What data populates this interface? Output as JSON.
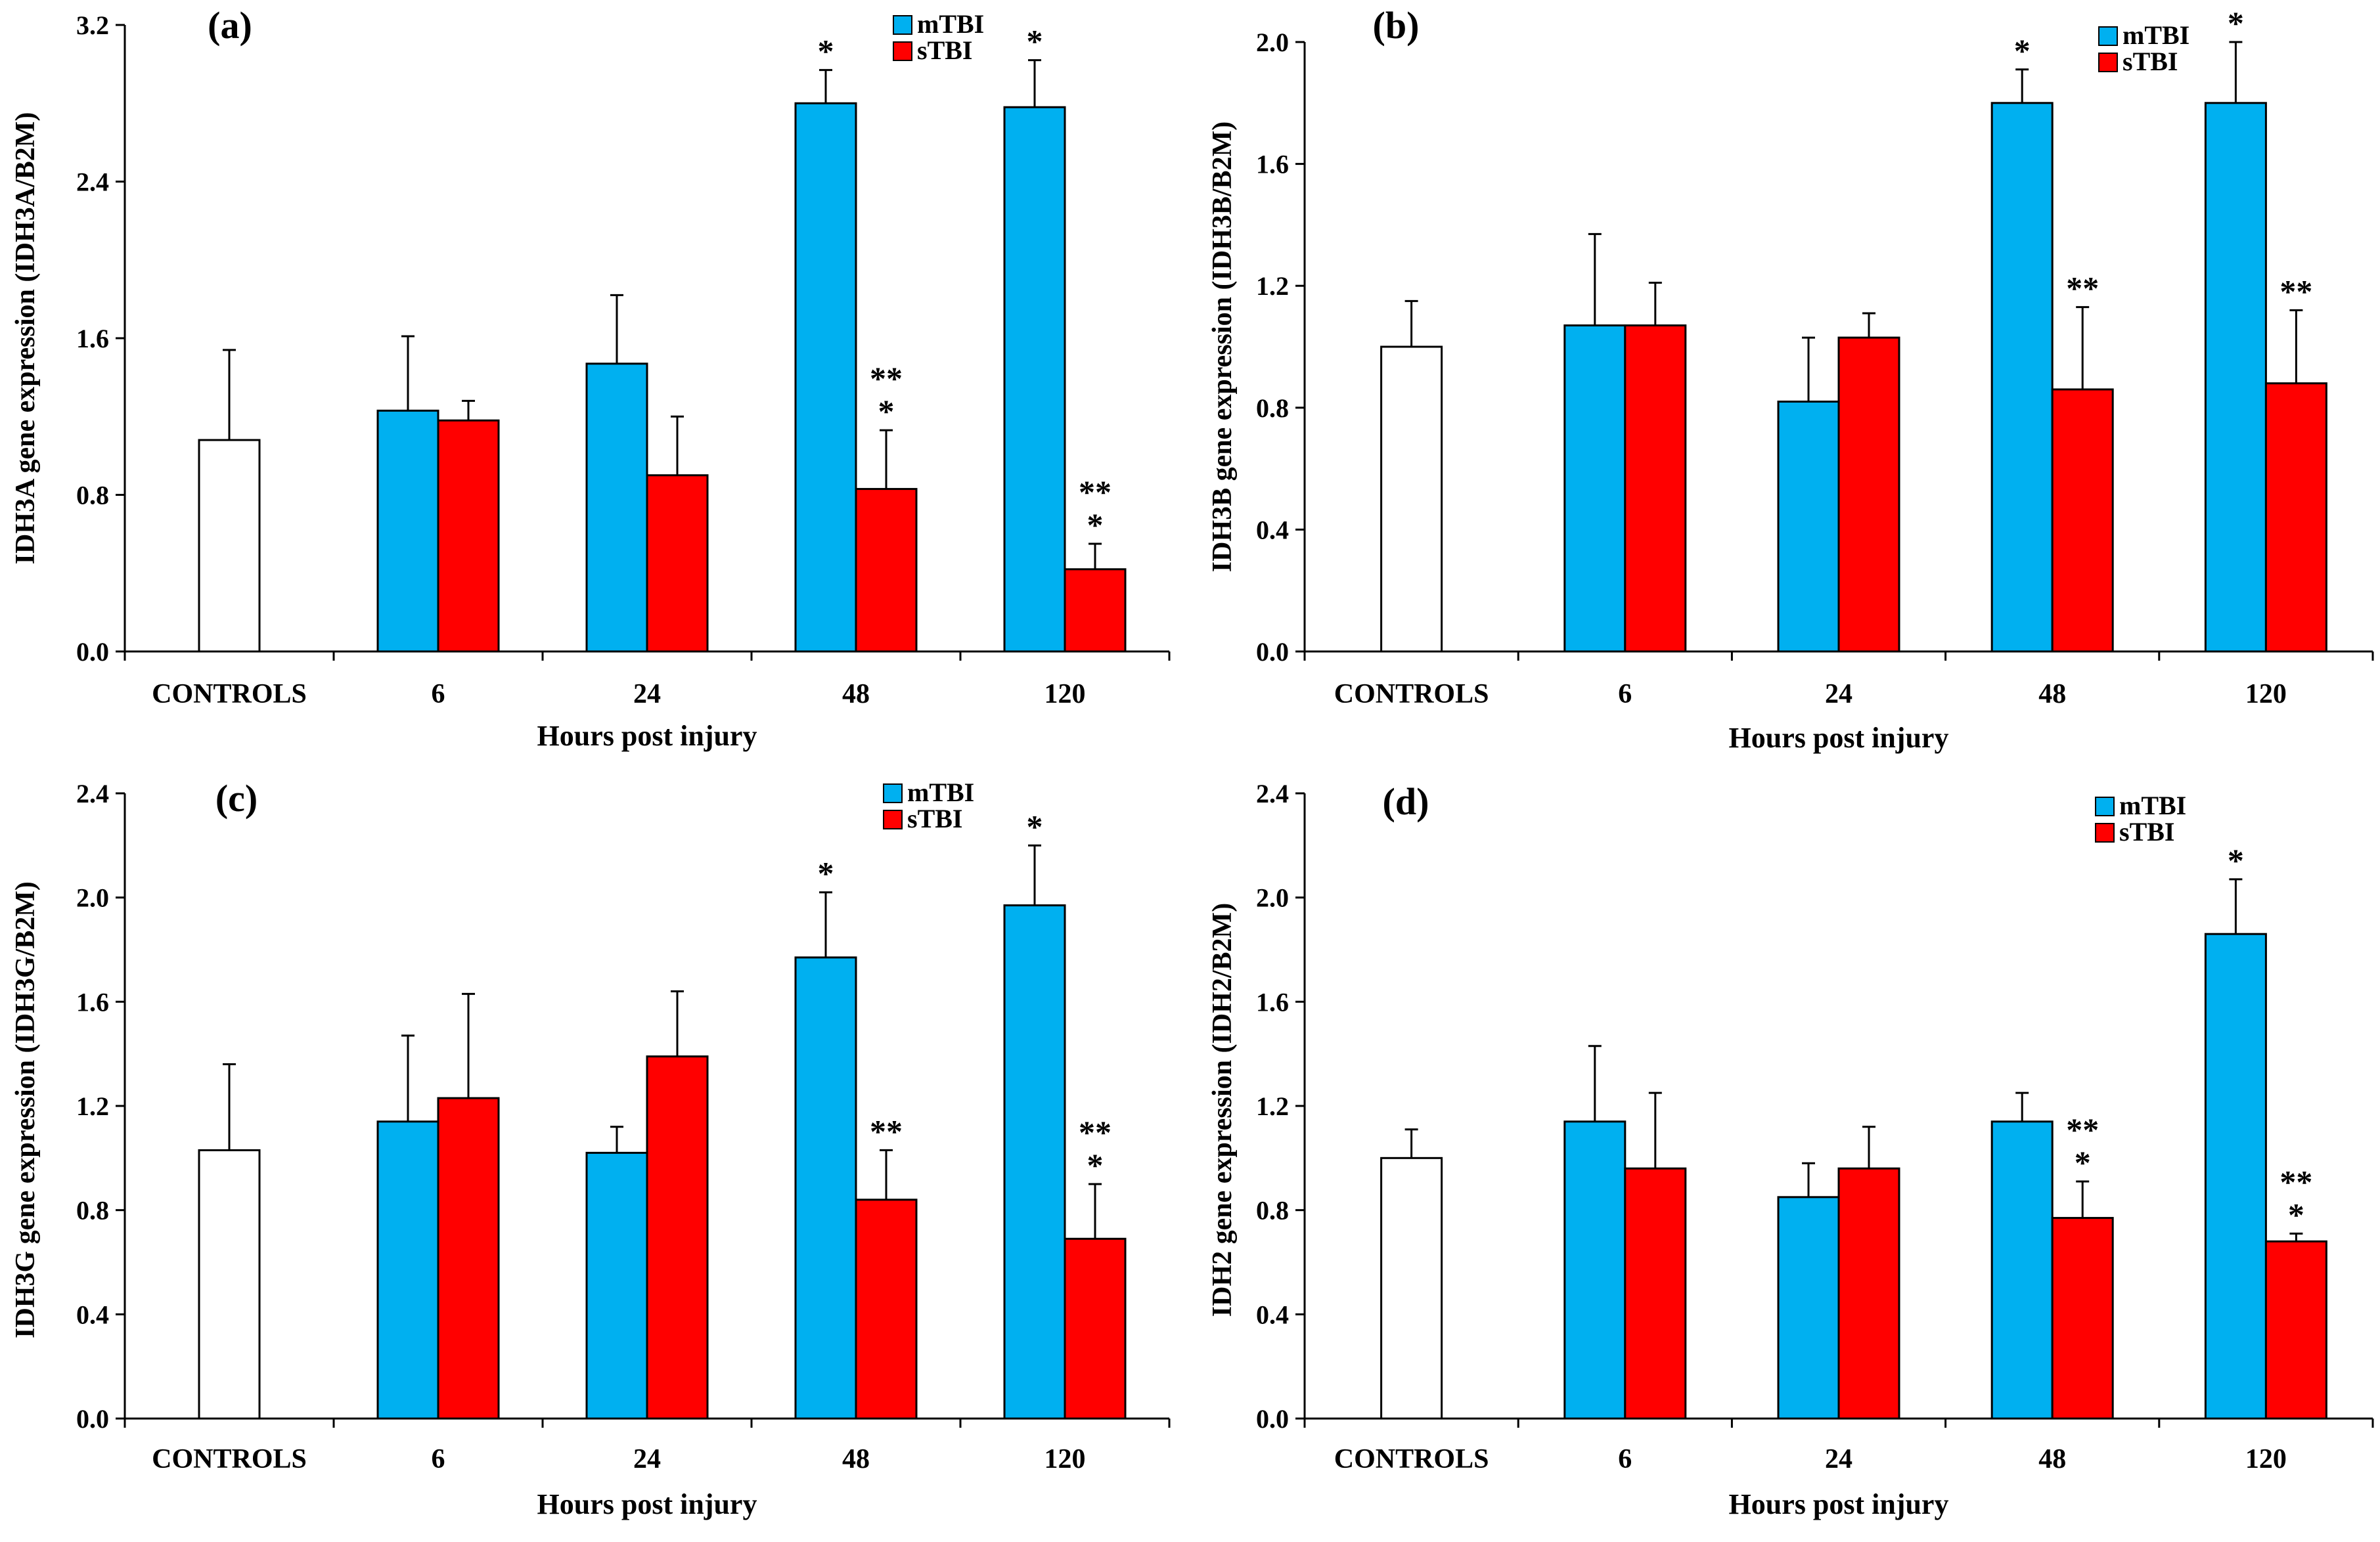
{
  "chart_data": [
    {
      "panel": "(a)",
      "type": "bar",
      "ylabel": "IDH3A gene expression (IDH3A/B2M)",
      "xlabel": "Hours post injury",
      "categories": [
        "CONTROLS",
        "6",
        "24",
        "48",
        "120"
      ],
      "ylim": [
        0,
        3.2
      ],
      "yticks": [
        "0.0",
        "0.8",
        "1.6",
        "2.4",
        "3.2"
      ],
      "control": {
        "name": "Controls",
        "color": "#ffffff",
        "value": 1.08,
        "error": 0.46
      },
      "series": [
        {
          "name": "mTBI",
          "color": "#00b0f0",
          "values": [
            null,
            1.23,
            1.47,
            2.8,
            2.78
          ],
          "errors": [
            null,
            0.38,
            0.35,
            0.17,
            0.24
          ],
          "sig": [
            null,
            "",
            "",
            "*",
            "*"
          ]
        },
        {
          "name": "sTBI",
          "color": "#ff0000",
          "values": [
            null,
            1.18,
            0.9,
            0.83,
            0.42
          ],
          "errors": [
            null,
            0.1,
            0.3,
            0.3,
            0.13
          ],
          "sig": [
            null,
            "",
            "",
            "**\n*",
            "**\n*"
          ]
        }
      ]
    },
    {
      "panel": "(b)",
      "type": "bar",
      "ylabel": "IDH3B gene expression (IDH3B/B2M)",
      "xlabel": "Hours post injury",
      "categories": [
        "CONTROLS",
        "6",
        "24",
        "48",
        "120"
      ],
      "ylim": [
        0,
        2.0
      ],
      "yticks": [
        "0.0",
        "0.4",
        "0.8",
        "1.2",
        "1.6",
        "2.0"
      ],
      "control": {
        "name": "Controls",
        "color": "#ffffff",
        "value": 1.0,
        "error": 0.15
      },
      "series": [
        {
          "name": "mTBI",
          "color": "#00b0f0",
          "values": [
            null,
            1.07,
            0.82,
            1.8,
            1.8
          ],
          "errors": [
            null,
            0.3,
            0.21,
            0.11,
            0.2
          ],
          "sig": [
            null,
            "",
            "",
            "*",
            "*"
          ]
        },
        {
          "name": "sTBI",
          "color": "#ff0000",
          "values": [
            null,
            1.07,
            1.03,
            0.86,
            0.88
          ],
          "errors": [
            null,
            0.14,
            0.08,
            0.27,
            0.24
          ],
          "sig": [
            null,
            "",
            "",
            "**",
            "**"
          ]
        }
      ]
    },
    {
      "panel": "(c)",
      "type": "bar",
      "ylabel": "IDH3G gene expression (IDH3G/B2M)",
      "xlabel": "Hours post injury",
      "categories": [
        "CONTROLS",
        "6",
        "24",
        "48",
        "120"
      ],
      "ylim": [
        0,
        2.4
      ],
      "yticks": [
        "0.0",
        "0.4",
        "0.8",
        "1.2",
        "1.6",
        "2.0",
        "2.4"
      ],
      "control": {
        "name": "Controls",
        "color": "#ffffff",
        "value": 1.03,
        "error": 0.33
      },
      "series": [
        {
          "name": "mTBI",
          "color": "#00b0f0",
          "values": [
            null,
            1.14,
            1.02,
            1.77,
            1.97
          ],
          "errors": [
            null,
            0.33,
            0.1,
            0.25,
            0.23
          ],
          "sig": [
            null,
            "",
            "",
            "*",
            "*"
          ]
        },
        {
          "name": "sTBI",
          "color": "#ff0000",
          "values": [
            null,
            1.23,
            1.39,
            0.84,
            0.69
          ],
          "errors": [
            null,
            0.4,
            0.25,
            0.19,
            0.21
          ],
          "sig": [
            null,
            "",
            "",
            "**",
            "**\n*"
          ]
        }
      ]
    },
    {
      "panel": "(d)",
      "type": "bar",
      "ylabel": "IDH2 gene expression (IDH2/B2M)",
      "xlabel": "Hours post injury",
      "categories": [
        "CONTROLS",
        "6",
        "24",
        "48",
        "120"
      ],
      "ylim": [
        0,
        2.4
      ],
      "yticks": [
        "0.0",
        "0.4",
        "0.8",
        "1.2",
        "1.6",
        "2.0",
        "2.4"
      ],
      "control": {
        "name": "Controls",
        "color": "#ffffff",
        "value": 1.0,
        "error": 0.11
      },
      "series": [
        {
          "name": "mTBI",
          "color": "#00b0f0",
          "values": [
            null,
            1.14,
            0.85,
            1.14,
            1.86
          ],
          "errors": [
            null,
            0.29,
            0.13,
            0.11,
            0.21
          ],
          "sig": [
            null,
            "",
            "",
            "",
            "*"
          ]
        },
        {
          "name": "sTBI",
          "color": "#ff0000",
          "values": [
            null,
            0.96,
            0.96,
            0.77,
            0.68
          ],
          "errors": [
            null,
            0.29,
            0.16,
            0.14,
            0.03
          ],
          "sig": [
            null,
            "",
            "",
            "**\n*",
            "**\n*"
          ]
        }
      ]
    }
  ]
}
